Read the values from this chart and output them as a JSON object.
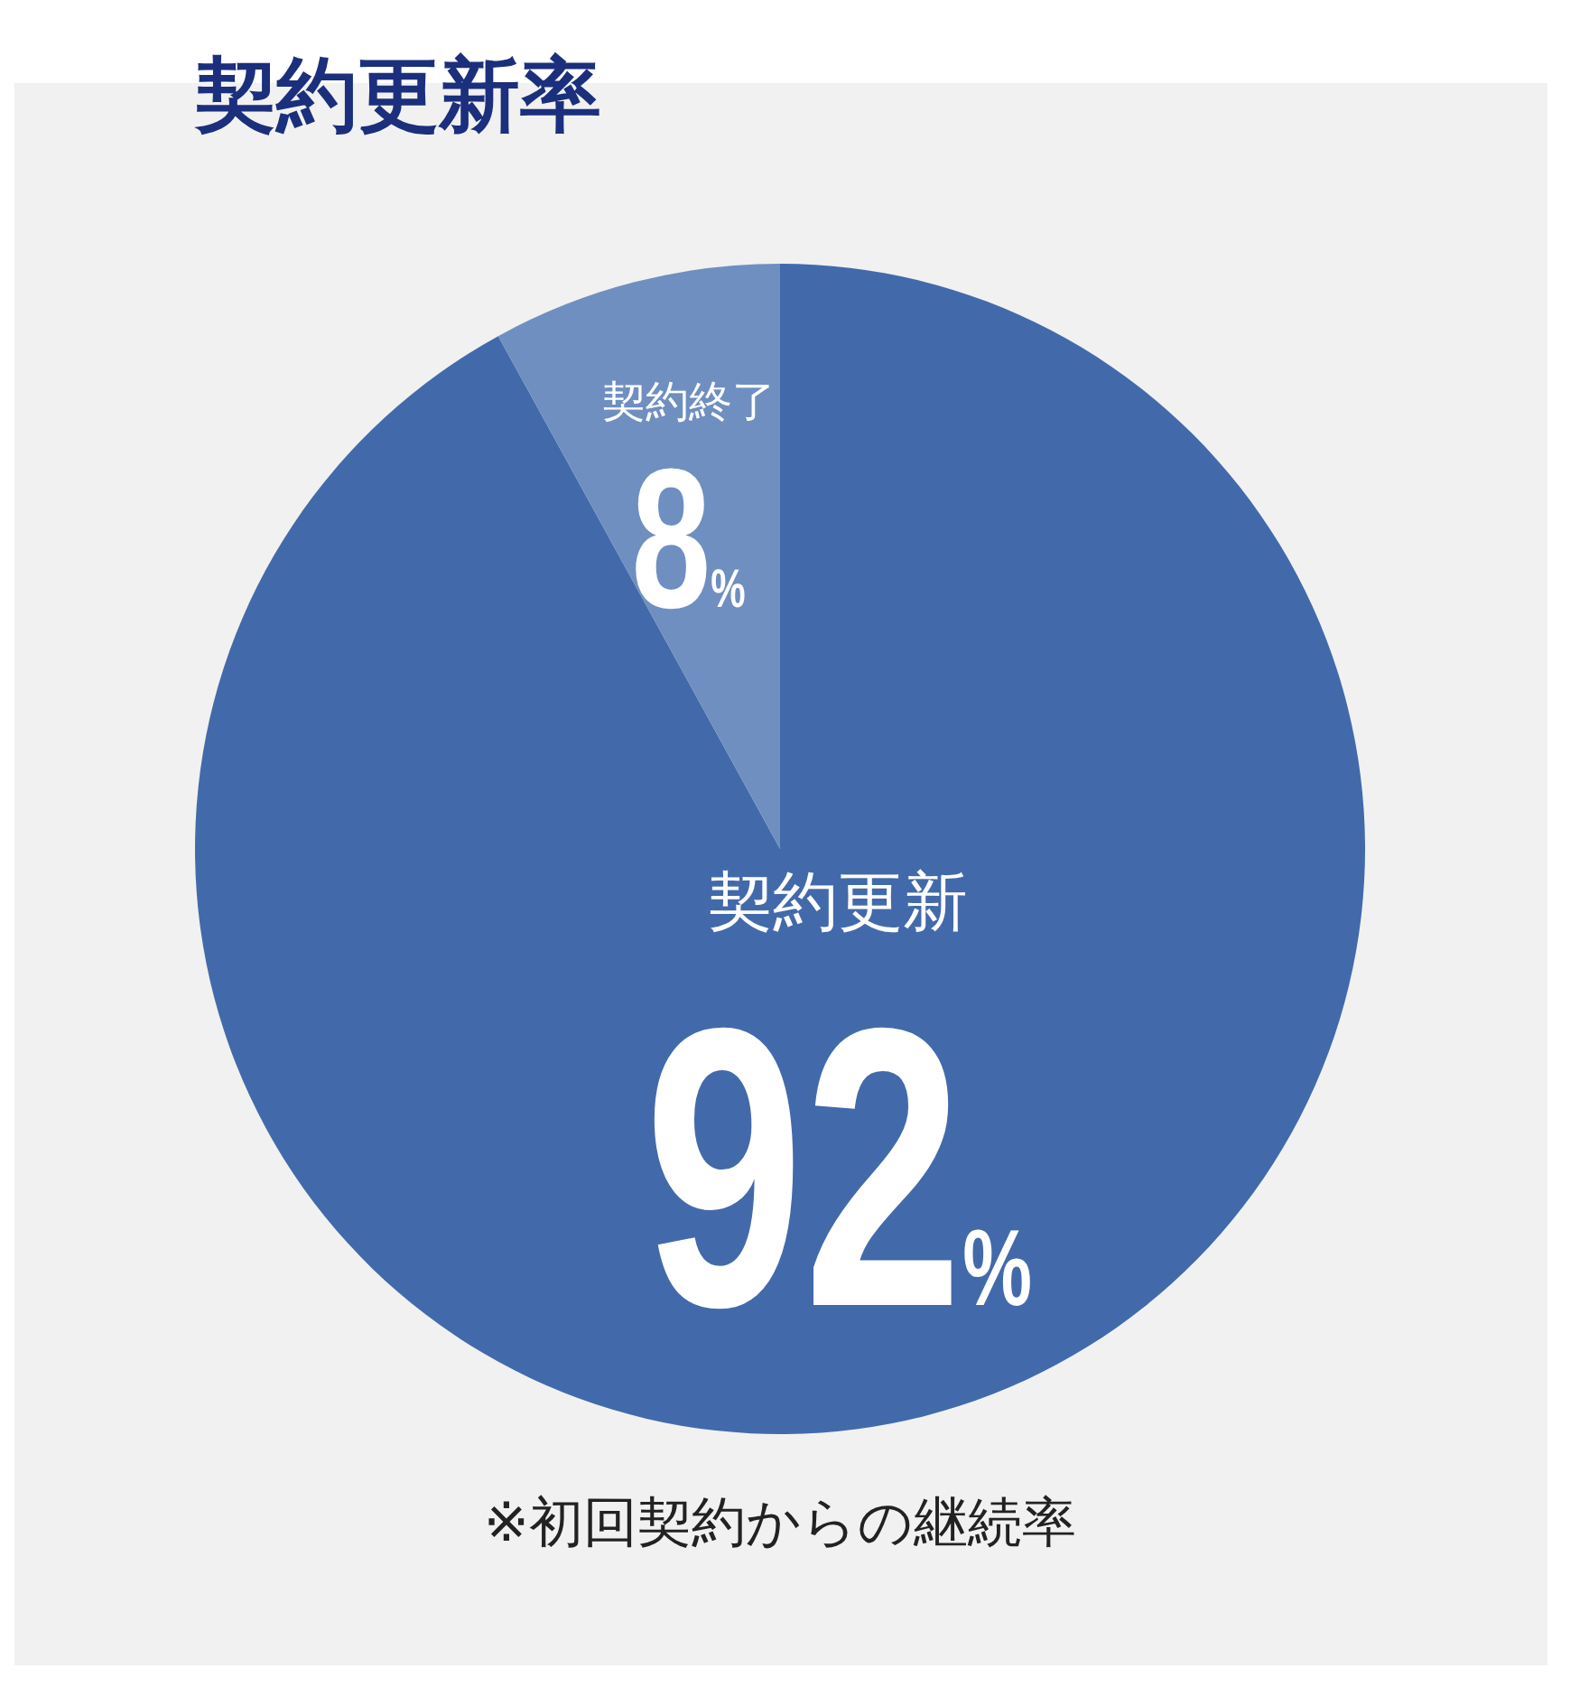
{
  "chart_data": {
    "type": "pie",
    "title": "契約更新率",
    "categories": [
      "契約更新",
      "契約終了"
    ],
    "values": [
      92,
      8
    ],
    "colors": [
      "#426aab",
      "#6f8fc0"
    ],
    "value_labels": [
      "92%",
      "8%"
    ],
    "annotations": [
      "※初回契約からの継続率"
    ]
  }
}
